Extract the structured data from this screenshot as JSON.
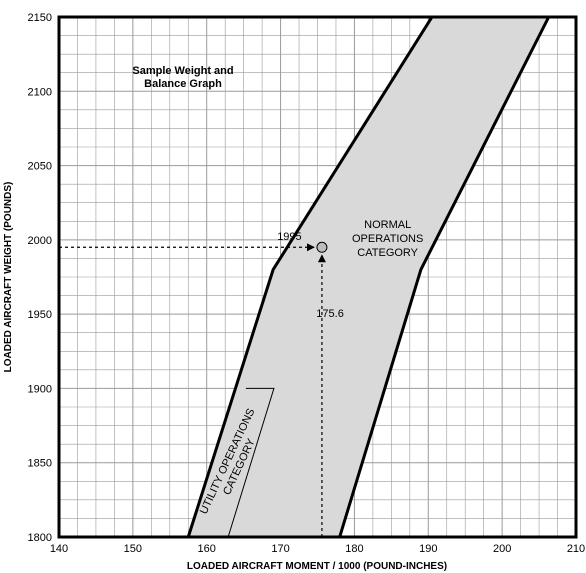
{
  "chart_data": {
    "type": "area",
    "title_lines": [
      "Sample Weight and",
      "Balance Graph"
    ],
    "xlabel": "LOADED AIRCRAFT MOMENT / 1000 (POUND-INCHES)",
    "ylabel": "LOADED AIRCRAFT WEIGHT (POUNDS)",
    "xlim": [
      140,
      210
    ],
    "ylim": [
      1800,
      2150
    ],
    "x_ticks": [
      140,
      150,
      160,
      170,
      180,
      190,
      200,
      210
    ],
    "y_ticks": [
      1800,
      1850,
      1900,
      1950,
      2000,
      2050,
      2100,
      2150
    ],
    "grid": true,
    "regions": [
      {
        "name_lines": [
          "NORMAL",
          "OPERATIONS",
          "CATEGORY"
        ],
        "label_at": [
          184.5,
          2008
        ],
        "points": [
          [
            157.5,
            1800
          ],
          [
            169.0,
            1980
          ],
          [
            190.5,
            2150
          ],
          [
            206.3,
            2150
          ],
          [
            189.0,
            1980
          ],
          [
            178.0,
            1800
          ]
        ],
        "fill": "#d9d9d9"
      },
      {
        "name_lines": [
          "UTILITY OPERATIONS",
          "CATEGORY"
        ],
        "label_at": [
          163.2,
          1850
        ],
        "label_rotation": -65,
        "points": [
          [
            162.9,
            1800
          ],
          [
            169.1,
            1900
          ],
          [
            165.3,
            1900
          ]
        ],
        "fill": "none"
      }
    ],
    "point": {
      "x": 175.6,
      "y": 1995
    },
    "annotations": [
      {
        "text": "1995",
        "x": 171.2,
        "y": 2000
      },
      {
        "text": "175.6",
        "x": 176.7,
        "y": 1948
      }
    ]
  }
}
